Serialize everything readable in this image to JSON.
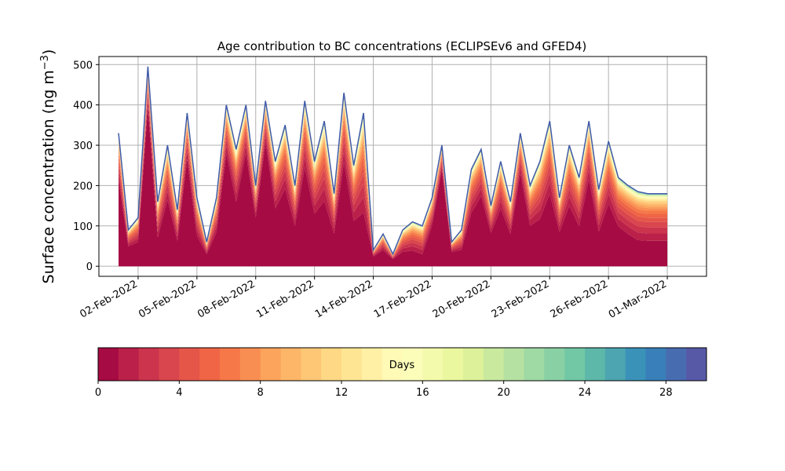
{
  "chart_data": [
    {
      "type": "area",
      "title": "Age contribution to BC concentrations (ECLIPSEv6 and GFED4)",
      "ylabel": "Surface concentration (ng m$^{-3}$)",
      "xlabel": "",
      "ylim": [
        -25,
        520
      ],
      "xlim": [
        "2022-01-31",
        "2022-03-03"
      ],
      "x_ticks": [
        "02-Feb-2022",
        "05-Feb-2022",
        "08-Feb-2022",
        "11-Feb-2022",
        "14-Feb-2022",
        "17-Feb-2022",
        "20-Feb-2022",
        "23-Feb-2022",
        "26-Feb-2022",
        "01-Mar-2022"
      ],
      "y_ticks": [
        "0",
        "100",
        "200",
        "300",
        "400",
        "500"
      ],
      "grid": true,
      "stacking": "by age band 0-30 days (colors follow colorbar)",
      "dates": [
        "2022-02-01 00:00",
        "2022-02-01 12:00",
        "2022-02-02 00:00",
        "2022-02-02 12:00",
        "2022-02-03 00:00",
        "2022-02-03 12:00",
        "2022-02-04 00:00",
        "2022-02-04 12:00",
        "2022-02-05 00:00",
        "2022-02-05 12:00",
        "2022-02-06 00:00",
        "2022-02-06 12:00",
        "2022-02-07 00:00",
        "2022-02-07 12:00",
        "2022-02-08 00:00",
        "2022-02-08 12:00",
        "2022-02-09 00:00",
        "2022-02-09 12:00",
        "2022-02-10 00:00",
        "2022-02-10 12:00",
        "2022-02-11 00:00",
        "2022-02-11 12:00",
        "2022-02-12 00:00",
        "2022-02-12 12:00",
        "2022-02-13 00:00",
        "2022-02-13 12:00",
        "2022-02-14 00:00",
        "2022-02-14 12:00",
        "2022-02-15 00:00",
        "2022-02-15 12:00",
        "2022-02-16 00:00",
        "2022-02-16 12:00",
        "2022-02-17 00:00",
        "2022-02-17 12:00",
        "2022-02-18 00:00",
        "2022-02-18 12:00",
        "2022-02-19 00:00",
        "2022-02-19 12:00",
        "2022-02-20 00:00",
        "2022-02-20 12:00",
        "2022-02-21 00:00",
        "2022-02-21 12:00",
        "2022-02-22 00:00",
        "2022-02-22 12:00",
        "2022-02-23 00:00",
        "2022-02-23 12:00",
        "2022-02-24 00:00",
        "2022-02-24 12:00",
        "2022-02-25 00:00",
        "2022-02-25 12:00",
        "2022-02-26 00:00",
        "2022-02-26 12:00",
        "2022-02-27 00:00",
        "2022-02-27 12:00",
        "2022-02-28 00:00",
        "2022-02-28 12:00",
        "2022-03-01 00:00"
      ],
      "total_values": [
        330,
        90,
        120,
        495,
        160,
        300,
        140,
        380,
        170,
        60,
        170,
        400,
        290,
        400,
        200,
        410,
        260,
        350,
        200,
        410,
        260,
        360,
        180,
        430,
        250,
        380,
        40,
        80,
        30,
        90,
        110,
        100,
        170,
        300,
        60,
        90,
        240,
        290,
        150,
        260,
        160,
        330,
        200,
        260,
        360,
        170,
        300,
        220,
        360,
        190,
        310,
        220,
        200,
        185,
        180,
        180,
        180
      ],
      "young_share": [
        0.65,
        0.55,
        0.5,
        0.8,
        0.45,
        0.55,
        0.45,
        0.7,
        0.45,
        0.5,
        0.5,
        0.7,
        0.55,
        0.7,
        0.6,
        0.75,
        0.55,
        0.55,
        0.5,
        0.6,
        0.5,
        0.45,
        0.45,
        0.6,
        0.45,
        0.35,
        0.6,
        0.5,
        0.6,
        0.4,
        0.35,
        0.3,
        0.6,
        0.8,
        0.6,
        0.45,
        0.55,
        0.6,
        0.55,
        0.55,
        0.5,
        0.7,
        0.5,
        0.45,
        0.5,
        0.5,
        0.5,
        0.45,
        0.6,
        0.45,
        0.5,
        0.45,
        0.4,
        0.35,
        0.35,
        0.35,
        0.35
      ]
    },
    {
      "type": "colorbar",
      "label": "Days",
      "range": [
        0,
        30
      ],
      "bins": 30,
      "colormap": "Spectral",
      "ticks": [
        "0",
        "4",
        "8",
        "12",
        "16",
        "20",
        "24",
        "28"
      ]
    }
  ],
  "colors": {
    "grid": "#b0b0b0",
    "axis": "#000000",
    "outline": "#3f5aa8"
  }
}
